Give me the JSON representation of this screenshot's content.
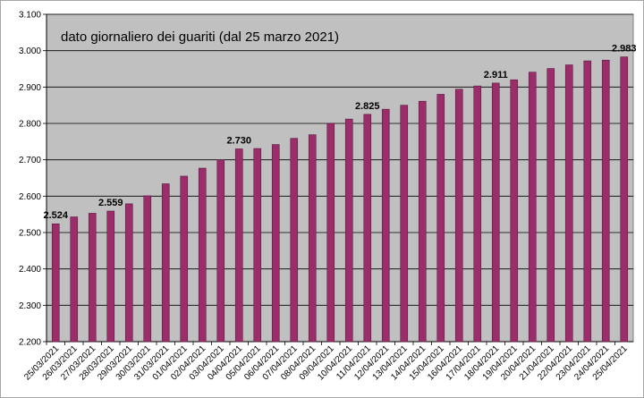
{
  "chart_data": {
    "type": "bar",
    "title": "dato giornaliero dei guariti (dal 25 marzo 2021)",
    "xlabel": "",
    "ylabel": "",
    "ylim": [
      2200,
      3100
    ],
    "y_ticks": [
      "2.200",
      "2.300",
      "2.400",
      "2.500",
      "2.600",
      "2.700",
      "2.800",
      "2.900",
      "3.000",
      "3.100"
    ],
    "y_tick_values": [
      2200,
      2300,
      2400,
      2500,
      2600,
      2700,
      2800,
      2900,
      3000,
      3100
    ],
    "grid": true,
    "bar_color": "#9b2d6a",
    "plot_background": "#c0c0c0",
    "categories": [
      "25/03/2021",
      "26/03/2021",
      "27/03/2021",
      "28/03/2021",
      "29/03/2021",
      "30/03/2021",
      "31/03/2021",
      "01/04/2021",
      "02/04/2021",
      "03/04/2021",
      "04/04/2021",
      "05/04/2021",
      "06/04/2021",
      "07/04/2021",
      "08/04/2021",
      "09/04/2021",
      "10/04/2021",
      "11/04/2021",
      "12/04/2021",
      "13/04/2021",
      "14/04/2021",
      "15/04/2021",
      "16/04/2021",
      "17/04/2021",
      "18/04/2021",
      "19/04/2021",
      "20/04/2021",
      "21/04/2021",
      "22/04/2021",
      "23/04/2021",
      "24/04/2021",
      "25/04/2021"
    ],
    "values": [
      2524,
      2543,
      2553,
      2559,
      2579,
      2601,
      2634,
      2655,
      2677,
      2700,
      2730,
      2731,
      2742,
      2759,
      2769,
      2800,
      2812,
      2825,
      2839,
      2850,
      2861,
      2880,
      2894,
      2903,
      2911,
      2920,
      2941,
      2951,
      2961,
      2972,
      2974,
      2983
    ],
    "data_labels": [
      {
        "index": 0,
        "text": "2.524"
      },
      {
        "index": 3,
        "text": "2.559"
      },
      {
        "index": 10,
        "text": "2.730"
      },
      {
        "index": 17,
        "text": "2.825"
      },
      {
        "index": 24,
        "text": "2.911"
      },
      {
        "index": 31,
        "text": "2.983"
      }
    ]
  }
}
